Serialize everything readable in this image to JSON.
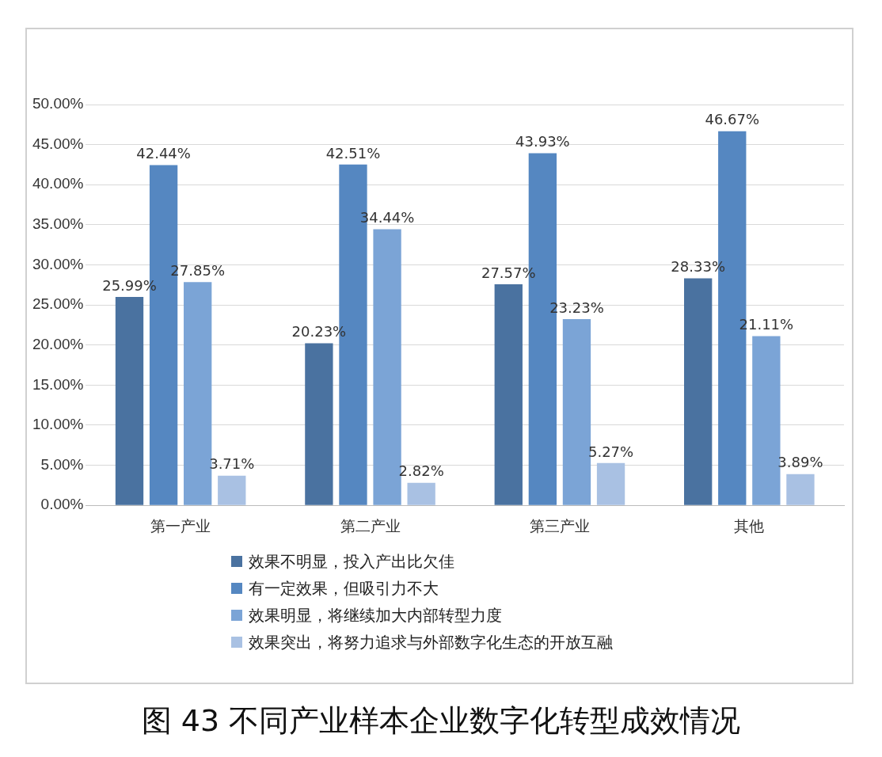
{
  "chart_data": {
    "type": "bar",
    "title": "图 43   不同产业样本企业数字化转型成效情况",
    "categories": [
      "第一产业",
      "第二产业",
      "第三产业",
      "其他"
    ],
    "series": [
      {
        "name": "效果不明显，投入产出比欠佳",
        "color": "#4a72a0",
        "values": [
          25.99,
          20.23,
          27.57,
          28.33
        ],
        "value_labels": [
          "25.99%",
          "20.23%",
          "27.57%",
          "28.33%"
        ]
      },
      {
        "name": "有一定效果，但吸引力不大",
        "color": "#5587c1",
        "values": [
          42.44,
          42.51,
          43.93,
          46.67
        ],
        "value_labels": [
          "42.44%",
          "42.51%",
          "43.93%",
          "46.67%"
        ]
      },
      {
        "name": "效果明显，将继续加大内部转型力度",
        "color": "#7ba4d6",
        "values": [
          27.85,
          34.44,
          23.23,
          21.11
        ],
        "value_labels": [
          "27.85%",
          "34.44%",
          "23.23%",
          "21.11%"
        ]
      },
      {
        "name": "效果突出，将努力追求与外部数字化生态的开放互融",
        "color": "#a9c1e3",
        "values": [
          3.71,
          2.82,
          5.27,
          3.89
        ],
        "value_labels": [
          "3.71%",
          "2.82%",
          "5.27%",
          "3.89%"
        ]
      }
    ],
    "ylim": [
      0,
      50
    ],
    "yticks": [
      {
        "value": 0,
        "label": "0.00%"
      },
      {
        "value": 5,
        "label": "5.00%"
      },
      {
        "value": 10,
        "label": "10.00%"
      },
      {
        "value": 15,
        "label": "15.00%"
      },
      {
        "value": 20,
        "label": "20.00%"
      },
      {
        "value": 25,
        "label": "25.00%"
      },
      {
        "value": 30,
        "label": "30.00%"
      },
      {
        "value": 35,
        "label": "35.00%"
      },
      {
        "value": 40,
        "label": "40.00%"
      },
      {
        "value": 45,
        "label": "45.00%"
      },
      {
        "value": 50,
        "label": "50.00%"
      }
    ],
    "grid": "y",
    "legend": "bottom"
  }
}
